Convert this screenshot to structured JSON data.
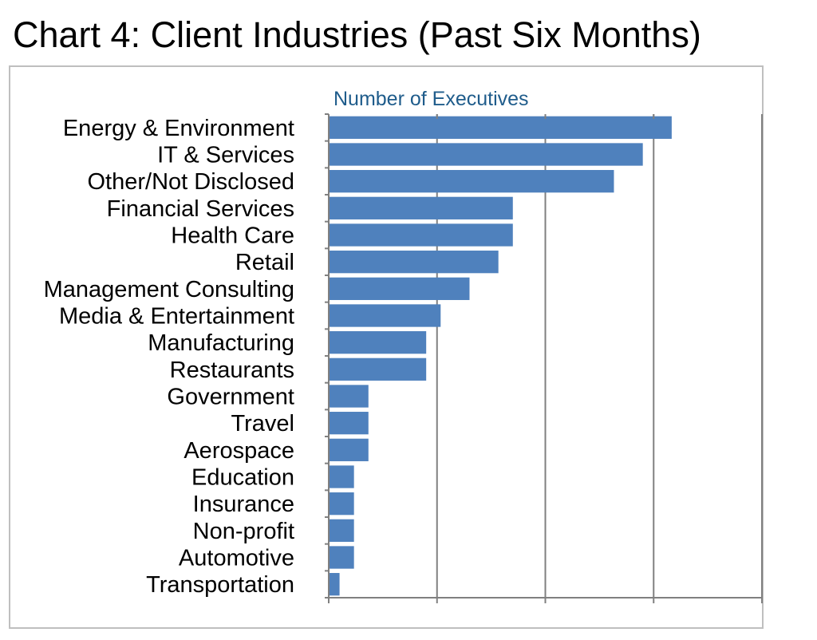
{
  "chart_data": {
    "type": "bar",
    "orientation": "horizontal",
    "title": "Chart 4: Client Industries (Past Six Months)",
    "xlabel": "Number of Executives",
    "ylabel": "",
    "xlim": [
      0,
      12
    ],
    "grid": true,
    "legend": "none",
    "categories": [
      "Energy & Environment",
      "IT & Services",
      "Other/Not Disclosed",
      "Financial Services",
      "Health Care",
      "Retail",
      "Management Consulting",
      "Media & Entertainment",
      "Manufacturing",
      "Restaurants",
      "Government",
      "Travel",
      "Aerospace",
      "Education",
      "Insurance",
      "Non-profit",
      "Automotive",
      "Transportation"
    ],
    "values": [
      9.5,
      8.7,
      7.9,
      5.1,
      5.1,
      4.7,
      3.9,
      3.1,
      2.7,
      2.7,
      1.1,
      1.1,
      1.1,
      0.7,
      0.7,
      0.7,
      0.7,
      0.3
    ],
    "colors": {
      "bar": "#4f81bd",
      "gridline": "#808080",
      "axis_title": "#1f5c8b",
      "frame": "#bfbfbf"
    }
  }
}
